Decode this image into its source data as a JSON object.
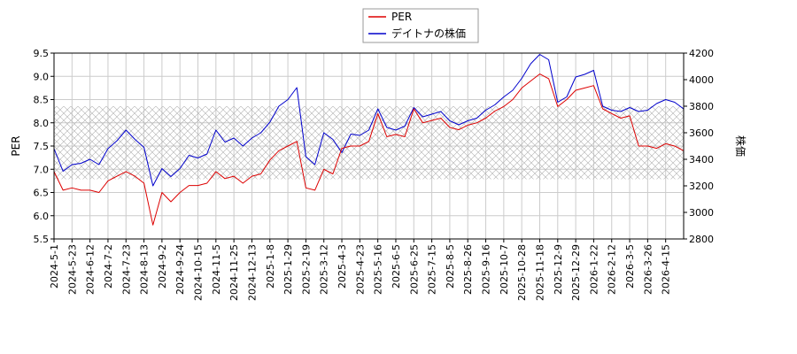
{
  "chart_data": {
    "type": "line",
    "title": "",
    "legend": {
      "placement": "top-center",
      "entries": [
        {
          "name": "PER",
          "color": "#dd0000"
        },
        {
          "name": "デイトナの株価",
          "color": "#0000cc"
        }
      ]
    },
    "ylabel_left": "PER",
    "ylabel_right": "株価",
    "ylim_left": [
      5.5,
      9.5
    ],
    "ylim_right": [
      2800,
      4200
    ],
    "yticks_left": [
      "5.5",
      "6.0",
      "6.5",
      "7.0",
      "7.5",
      "8.0",
      "8.5",
      "9.0",
      "9.5"
    ],
    "yticks_right": [
      "2800",
      "3000",
      "3200",
      "3400",
      "3600",
      "3800",
      "4000",
      "4200"
    ],
    "xticks": [
      "2024-5-1",
      "2024-5-23",
      "2024-6-12",
      "2024-7-2",
      "2024-7-23",
      "2024-8-13",
      "2024-9-2",
      "2024-9-24",
      "2024-10-15",
      "2024-11-5",
      "2024-11-25",
      "2024-12-13",
      "2025-1-8",
      "2025-1-29",
      "2025-2-19",
      "2025-3-12",
      "2025-4-3",
      "2025-4-23",
      "2025-5-16",
      "2025-6-5",
      "2025-6-25",
      "2025-7-15",
      "2025-8-5",
      "2025-8-26",
      "2025-9-16",
      "2025-10-7",
      "2025-10-28",
      "2025-11-18",
      "2025-12-9",
      "2025-12-29",
      "2026-1-22",
      "2026-2-12",
      "2026-3-5",
      "2026-3-26",
      "2026-4-15"
    ],
    "grid": true,
    "hatch_band_right": [
      3250,
      3800
    ],
    "series": [
      {
        "name": "PER",
        "axis": "left",
        "color": "#dd0000",
        "values": [
          6.95,
          6.55,
          6.6,
          6.55,
          6.55,
          6.5,
          6.75,
          6.85,
          6.95,
          6.85,
          6.7,
          5.8,
          6.5,
          6.3,
          6.5,
          6.65,
          6.65,
          6.7,
          6.95,
          6.8,
          6.85,
          6.7,
          6.85,
          6.9,
          7.2,
          7.4,
          7.5,
          7.6,
          6.6,
          6.55,
          7.0,
          6.9,
          7.45,
          7.5,
          7.5,
          7.6,
          8.2,
          7.7,
          7.75,
          7.7,
          8.3,
          8.0,
          8.05,
          8.1,
          7.9,
          7.85,
          7.95,
          8.0,
          8.1,
          8.25,
          8.35,
          8.5,
          8.75,
          8.9,
          9.05,
          8.95,
          8.35,
          8.5,
          8.7,
          8.75,
          8.8,
          8.3,
          8.2,
          8.1,
          8.15,
          7.5,
          7.5,
          7.45,
          7.55,
          7.5,
          7.4
        ]
      },
      {
        "name": "デイトナの株価",
        "axis": "right",
        "color": "#0000cc",
        "values": [
          3480,
          3310,
          3360,
          3370,
          3400,
          3360,
          3480,
          3540,
          3620,
          3550,
          3490,
          3200,
          3330,
          3270,
          3330,
          3430,
          3410,
          3440,
          3620,
          3530,
          3560,
          3500,
          3560,
          3600,
          3680,
          3800,
          3850,
          3940,
          3420,
          3360,
          3600,
          3550,
          3450,
          3590,
          3580,
          3620,
          3780,
          3640,
          3620,
          3650,
          3790,
          3720,
          3740,
          3760,
          3690,
          3660,
          3690,
          3710,
          3770,
          3810,
          3870,
          3920,
          4010,
          4120,
          4190,
          4150,
          3830,
          3870,
          4020,
          4040,
          4070,
          3800,
          3770,
          3760,
          3790,
          3760,
          3770,
          3820,
          3850,
          3830,
          3780
        ]
      }
    ]
  }
}
